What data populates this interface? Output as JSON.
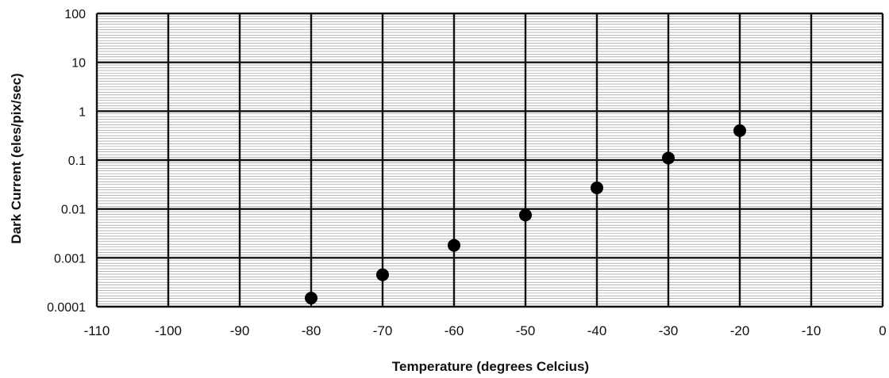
{
  "chart_data": {
    "type": "scatter",
    "title": "",
    "xlabel": "Temperature (degrees Celcius)",
    "ylabel": "Dark Current (eles/pix/sec)",
    "xlim": [
      -110,
      0
    ],
    "ylim": [
      0.0001,
      100
    ],
    "yscale": "log",
    "grid": true,
    "x_ticks": [
      "-110",
      "-100",
      "-90",
      "-80",
      "-70",
      "-60",
      "-50",
      "-40",
      "-30",
      "-20",
      "-10",
      "0"
    ],
    "y_ticks": [
      "0.0001",
      "0.001",
      "0.01",
      "0.1",
      "1",
      "10",
      "100"
    ],
    "points": [
      {
        "x": -80,
        "y": 0.00015
      },
      {
        "x": -70,
        "y": 0.00045
      },
      {
        "x": -60,
        "y": 0.0018
      },
      {
        "x": -50,
        "y": 0.0075
      },
      {
        "x": -40,
        "y": 0.027
      },
      {
        "x": -30,
        "y": 0.11
      },
      {
        "x": -20,
        "y": 0.4
      }
    ],
    "marker_color": "#000000"
  }
}
